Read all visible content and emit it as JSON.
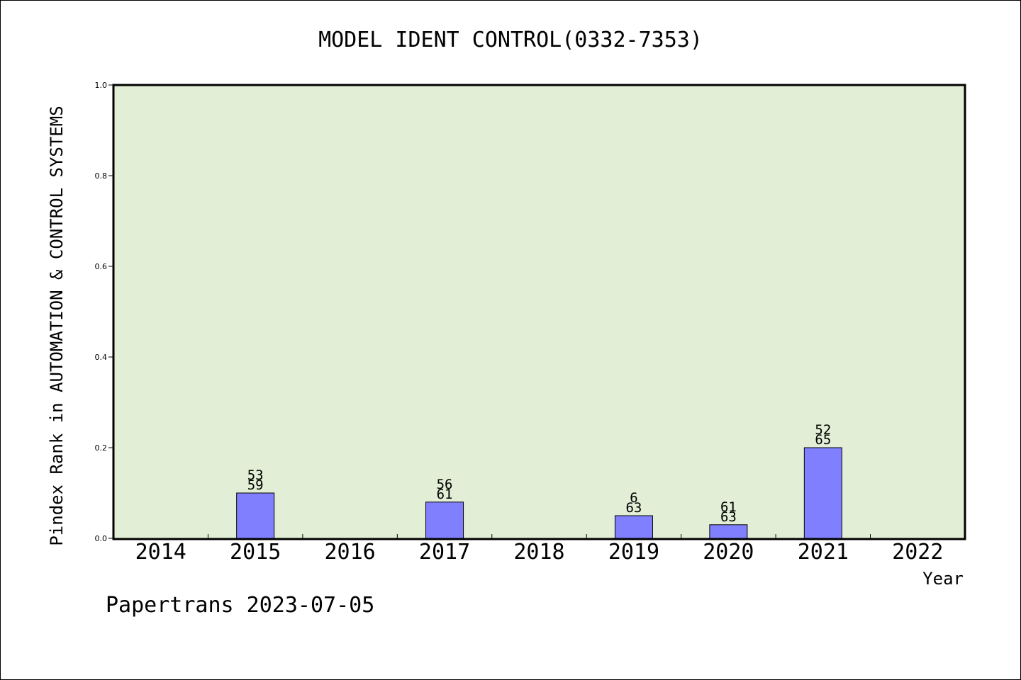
{
  "chart_data": {
    "type": "bar",
    "title": "MODEL IDENT CONTROL(0332-7353)",
    "xlabel": "Year",
    "ylabel": "Pindex Rank in AUTOMATION & CONTROL SYSTEMS",
    "categories": [
      "2014",
      "2015",
      "2016",
      "2017",
      "2018",
      "2019",
      "2020",
      "2021",
      "2022"
    ],
    "values": [
      null,
      0.1,
      null,
      0.08,
      null,
      0.05,
      0.03,
      0.2,
      null
    ],
    "bar_labels": [
      null,
      [
        "53",
        "59"
      ],
      null,
      [
        "56",
        "61"
      ],
      null,
      [
        "6",
        "63"
      ],
      [
        "61",
        "63"
      ],
      [
        "52",
        "65"
      ],
      null
    ],
    "ylim": [
      0,
      1.0
    ],
    "yticks": [
      "0.0",
      "0.2",
      "0.4",
      "0.6",
      "0.8",
      "1.0"
    ],
    "grid": false,
    "legend": "none"
  },
  "footer": "Papertrans 2023-07-05",
  "colors": {
    "plot_background": "#e2efd6",
    "bar_fill": "#8080ff",
    "bar_stroke": "#000000",
    "axis": "#000000"
  }
}
